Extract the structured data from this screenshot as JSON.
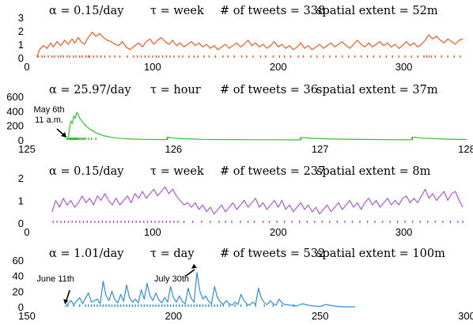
{
  "chart_data": [
    {
      "type": "line",
      "title_parts": [
        "α = 0.15/day",
        "τ = week",
        "# of tweets = 338",
        "spatial extent = 52m"
      ],
      "color": "#f05a1e",
      "xlim": [
        0,
        350
      ],
      "ylim": [
        0,
        3
      ],
      "xticks": [
        0,
        100,
        200,
        300
      ],
      "yticks": [
        0,
        1,
        2,
        3
      ],
      "x": [
        8,
        10,
        13,
        16,
        19,
        21,
        24,
        27,
        30,
        33,
        36,
        38,
        41,
        43,
        46,
        48,
        52,
        55,
        58,
        61,
        64,
        67,
        70,
        73,
        76,
        79,
        82,
        86,
        89,
        92,
        95,
        98,
        101,
        104,
        107,
        110,
        113,
        116,
        119,
        122,
        125,
        128,
        131,
        134,
        137,
        140,
        143,
        146,
        149,
        152,
        155,
        158,
        161,
        164,
        167,
        170,
        173,
        176,
        179,
        182,
        185,
        188,
        191,
        194,
        197,
        200,
        203,
        206,
        209,
        212,
        215,
        218,
        221,
        224,
        227,
        230,
        233,
        236,
        239,
        242,
        245,
        248,
        251,
        254,
        257,
        260,
        263,
        266,
        269,
        272,
        275,
        278,
        281,
        284,
        287,
        290,
        293,
        296,
        299,
        302,
        305,
        308,
        311,
        314,
        317,
        320,
        323,
        326,
        329,
        332,
        335,
        338,
        341,
        344,
        347
      ],
      "y": [
        0.05,
        0.6,
        0.9,
        0.7,
        1.1,
        0.8,
        1.2,
        0.9,
        1.3,
        1.0,
        1.4,
        1.1,
        1.5,
        1.2,
        1.0,
        1.4,
        1.9,
        1.6,
        1.8,
        1.5,
        1.3,
        1.2,
        1.0,
        0.9,
        1.2,
        0.8,
        0.6,
        0.9,
        1.1,
        0.8,
        1.2,
        1.4,
        1.0,
        1.3,
        1.5,
        1.2,
        1.0,
        1.3,
        0.9,
        1.1,
        0.8,
        1.0,
        1.2,
        0.9,
        1.1,
        0.8,
        1.0,
        0.7,
        0.9,
        0.6,
        0.8,
        1.0,
        0.7,
        0.9,
        1.1,
        0.8,
        1.0,
        1.3,
        0.9,
        1.1,
        0.8,
        1.0,
        0.7,
        0.9,
        1.2,
        0.8,
        1.0,
        0.7,
        0.9,
        0.6,
        0.8,
        1.1,
        0.7,
        0.9,
        0.6,
        0.8,
        1.0,
        0.7,
        0.9,
        1.1,
        0.8,
        1.0,
        1.2,
        0.9,
        0.7,
        1.0,
        1.3,
        1.0,
        0.8,
        1.1,
        0.8,
        1.0,
        1.2,
        0.9,
        1.1,
        0.8,
        1.0,
        0.7,
        0.9,
        1.2,
        0.9,
        1.1,
        0.8,
        1.0,
        1.3,
        1.7,
        1.4,
        1.6,
        1.3,
        1.1,
        1.4,
        1.2,
        1.0,
        1.3,
        1.4
      ],
      "events": [
        9,
        12,
        14,
        17,
        20,
        22,
        25,
        27,
        29,
        32,
        34,
        37,
        39,
        42,
        44,
        47,
        49,
        50,
        53,
        56,
        59,
        62,
        66,
        70,
        74,
        80,
        85,
        88,
        91,
        94,
        97,
        100,
        103,
        105,
        108,
        111,
        114,
        117,
        121,
        124,
        129,
        133,
        136,
        141,
        145,
        150,
        156,
        160,
        165,
        171,
        175,
        180,
        186,
        190,
        196,
        201,
        205,
        210,
        216,
        220,
        226,
        231,
        236,
        241,
        246,
        251,
        256,
        261,
        266,
        271,
        276,
        281,
        286,
        291,
        296,
        301,
        306,
        311,
        316,
        318,
        320,
        322,
        325,
        330,
        335,
        340,
        345
      ]
    },
    {
      "type": "line",
      "title_parts": [
        "α = 25.97/day",
        "τ = hour",
        "# of tweets = 36",
        "spatial extent = 37m"
      ],
      "color": "#2ec22e",
      "xlim": [
        125,
        128
      ],
      "ylim": [
        0,
        600
      ],
      "xticks": [
        125,
        126,
        127,
        128
      ],
      "yticks": [
        0,
        200,
        400,
        600
      ],
      "x": [
        125.27,
        125.285,
        125.29,
        125.3,
        125.31,
        125.32,
        125.33,
        125.34,
        125.35,
        125.36,
        125.38,
        125.4,
        125.43,
        125.47,
        125.52,
        125.58,
        125.65,
        125.72,
        125.8,
        125.9,
        125.95,
        125.96,
        126.0,
        126.1,
        126.2,
        126.3,
        126.5,
        126.7,
        126.86,
        126.87,
        126.95,
        127.1,
        127.3,
        127.5,
        127.62,
        127.63,
        127.7,
        127.85,
        128.0
      ],
      "y": [
        0,
        60,
        150,
        260,
        230,
        330,
        300,
        380,
        350,
        300,
        250,
        200,
        150,
        100,
        60,
        35,
        20,
        12,
        8,
        5,
        4,
        40,
        25,
        15,
        8,
        5,
        3,
        2,
        1,
        35,
        22,
        12,
        6,
        3,
        2,
        40,
        25,
        12,
        5
      ],
      "events": [
        125.28,
        125.29,
        125.295,
        125.3,
        125.305,
        125.31,
        125.315,
        125.32,
        125.325,
        125.33,
        125.335,
        125.34,
        125.345,
        125.35,
        125.36,
        125.37,
        125.38,
        125.39,
        125.4,
        125.42,
        125.44,
        125.47,
        125.96,
        126.87,
        127.63
      ],
      "annotation": {
        "text_lines": [
          "May 6th",
          "11 a.m."
        ],
        "x": 125.27
      }
    },
    {
      "type": "line",
      "title_parts": [
        "α = 0.15/day",
        "τ = week",
        "# of tweets = 237",
        "spatial extent = 8m"
      ],
      "color": "#b157d6",
      "xlim": [
        0,
        350
      ],
      "ylim": [
        0,
        2
      ],
      "xticks": [
        0,
        100,
        200,
        300
      ],
      "yticks": [
        0,
        1,
        2
      ],
      "x": [
        20,
        23,
        26,
        29,
        32,
        35,
        38,
        41,
        44,
        47,
        50,
        53,
        56,
        59,
        62,
        65,
        68,
        71,
        74,
        77,
        80,
        83,
        86,
        89,
        92,
        95,
        98,
        101,
        104,
        107,
        110,
        113,
        116,
        119,
        122,
        125,
        128,
        131,
        134,
        137,
        140,
        143,
        146,
        149,
        152,
        155,
        158,
        161,
        164,
        167,
        170,
        173,
        176,
        179,
        182,
        185,
        188,
        191,
        194,
        197,
        200,
        203,
        206,
        209,
        212,
        215,
        218,
        221,
        224,
        227,
        230,
        233,
        236,
        239,
        242,
        245,
        248,
        251,
        254,
        257,
        260,
        263,
        266,
        269,
        272,
        275,
        278,
        281,
        284,
        287,
        290,
        293,
        296,
        299,
        302,
        305,
        308,
        311,
        314,
        317,
        320,
        323,
        326,
        329,
        332,
        335,
        338,
        341,
        344,
        347
      ],
      "y": [
        0.5,
        1.0,
        0.7,
        1.1,
        0.8,
        1.0,
        0.7,
        0.9,
        1.2,
        0.9,
        1.1,
        0.8,
        1.2,
        1.0,
        1.3,
        1.0,
        0.8,
        1.1,
        0.8,
        1.0,
        1.2,
        0.9,
        1.3,
        1.1,
        1.4,
        1.1,
        1.3,
        1.5,
        1.2,
        1.4,
        1.6,
        1.3,
        1.5,
        1.2,
        1.0,
        0.8,
        0.9,
        0.7,
        0.9,
        0.6,
        0.8,
        0.5,
        0.7,
        0.4,
        0.6,
        0.8,
        0.5,
        0.7,
        0.9,
        0.6,
        0.8,
        1.0,
        0.7,
        0.9,
        1.1,
        0.7,
        0.9,
        0.6,
        0.8,
        1.0,
        0.7,
        1.0,
        0.6,
        0.8,
        0.5,
        0.7,
        0.9,
        0.6,
        0.8,
        0.5,
        0.7,
        0.4,
        0.6,
        0.8,
        0.5,
        0.7,
        0.9,
        0.6,
        0.8,
        1.0,
        0.7,
        0.9,
        0.6,
        0.9,
        1.1,
        0.8,
        1.0,
        0.7,
        0.9,
        1.1,
        0.8,
        1.0,
        0.8,
        1.1,
        1.2,
        0.9,
        1.1,
        0.9,
        1.2,
        1.5,
        1.1,
        1.3,
        1.0,
        1.2,
        1.4,
        1.0,
        1.3,
        1.4,
        1.0,
        0.7
      ],
      "events": [
        21,
        24,
        27,
        30,
        33,
        36,
        39,
        42,
        45,
        48,
        51,
        54,
        57,
        60,
        63,
        66,
        69,
        72,
        75,
        78,
        81,
        84,
        87,
        90,
        93,
        96,
        99,
        102,
        105,
        108,
        111,
        114,
        117,
        120,
        125,
        132,
        139,
        146,
        153,
        158,
        163,
        170,
        176,
        181,
        188,
        193,
        199,
        205,
        211,
        217,
        223,
        229,
        235,
        241,
        247,
        253,
        259,
        265,
        271,
        277,
        283,
        289,
        295,
        301,
        307,
        313,
        319,
        325,
        331,
        337,
        343,
        347
      ]
    },
    {
      "type": "line",
      "title_parts": [
        "α = 1.01/day",
        "τ = day",
        "# of tweets = 532",
        "spatial extent = 100m"
      ],
      "color": "#2b8ee0",
      "xlim": [
        150,
        300
      ],
      "ylim": [
        0,
        60
      ],
      "xticks": [
        150,
        200,
        250,
        300
      ],
      "yticks": [
        0,
        20,
        40,
        60
      ],
      "x": [
        163,
        165,
        166,
        168,
        169,
        171,
        172,
        174,
        175,
        176,
        177,
        178,
        179,
        180,
        181,
        182,
        183,
        184,
        185,
        186,
        187,
        188,
        189,
        190,
        191,
        192,
        193,
        194,
        195,
        196,
        197,
        198,
        199,
        200,
        201,
        202,
        203,
        204,
        205,
        206,
        207,
        208,
        209,
        210,
        211,
        212,
        213,
        214,
        215,
        216,
        217,
        218,
        219,
        220,
        221,
        222,
        223,
        224,
        225,
        226,
        227,
        228,
        229,
        230,
        231,
        232,
        233,
        234,
        235,
        236,
        237,
        238,
        240,
        242,
        244,
        246,
        248,
        250,
        252,
        254,
        256,
        258,
        260,
        262
      ],
      "y": [
        0,
        8,
        3,
        12,
        4,
        18,
        6,
        10,
        4,
        33,
        14,
        8,
        20,
        9,
        5,
        16,
        7,
        28,
        12,
        6,
        10,
        5,
        22,
        10,
        30,
        14,
        8,
        18,
        9,
        5,
        12,
        6,
        26,
        12,
        6,
        14,
        7,
        4,
        24,
        11,
        6,
        44,
        20,
        10,
        14,
        7,
        4,
        26,
        12,
        6,
        3,
        8,
        4,
        2,
        6,
        3,
        16,
        8,
        4,
        2,
        6,
        3,
        24,
        11,
        5,
        3,
        8,
        4,
        2,
        10,
        5,
        3,
        2,
        1,
        4,
        2,
        1,
        0.5,
        3,
        1.5,
        0.5,
        0,
        0,
        0
      ],
      "events": [
        164,
        166,
        168,
        170,
        171,
        172,
        173,
        174,
        175,
        176,
        177,
        178,
        179,
        180,
        181,
        182,
        183,
        184,
        185,
        186,
        187,
        188,
        189,
        190,
        191,
        192,
        193,
        194,
        195,
        196,
        197,
        198,
        199,
        200,
        201,
        202,
        203,
        204,
        205,
        206,
        207,
        208,
        209,
        210,
        211,
        212,
        213,
        214,
        215,
        216,
        217,
        219,
        221,
        223,
        225,
        228,
        231,
        234,
        237,
        241
      ],
      "annotations": [
        {
          "text": "June 11th",
          "x": 163
        },
        {
          "text": "July 30th",
          "x": 208
        }
      ]
    }
  ]
}
